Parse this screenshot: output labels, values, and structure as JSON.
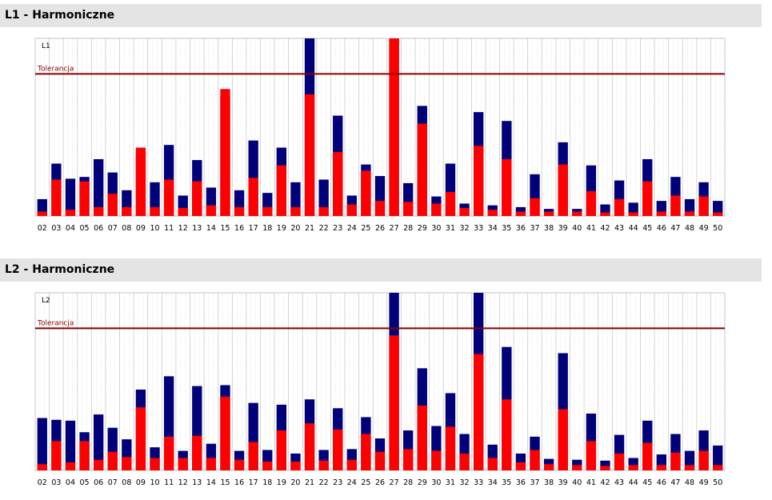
{
  "colors": {
    "blue": "#00007a",
    "red": "#ff0000",
    "tolerance": "#8b0000",
    "frame": "#b8c4d4"
  },
  "sections": [
    {
      "title": "L1 - Harmoniczne"
    },
    {
      "title": "L2 - Harmoniczne"
    }
  ],
  "chart_data": [
    {
      "type": "bar",
      "title": "L1 - Harmoniczne",
      "corner_label": "L1",
      "tolerance_label": "Tolerancja",
      "tolerance": 80,
      "ylim": [
        0,
        100
      ],
      "categories": [
        "02",
        "03",
        "04",
        "05",
        "06",
        "07",
        "08",
        "09",
        "10",
        "11",
        "12",
        "13",
        "14",
        "15",
        "16",
        "17",
        "18",
        "19",
        "20",
        "21",
        "22",
        "23",
        "24",
        "25",
        "26",
        "27",
        "28",
        "29",
        "30",
        "31",
        "32",
        "33",
        "34",
        "35",
        "36",
        "37",
        "38",
        "39",
        "40",
        "41",
        "42",
        "43",
        "44",
        "45",
        "46",
        "47",
        "48",
        "49",
        "50"
      ],
      "series": [
        {
          "values": [
            9.5,
            29.5,
            21,
            22,
            32,
            24.5,
            14.5,
            35.5,
            19,
            40,
            11.5,
            31.5,
            16,
            67,
            14.5,
            42.5,
            13,
            38.5,
            19,
            100,
            20.5,
            56.5,
            11.5,
            29,
            22.5,
            100,
            18.5,
            62,
            11,
            29.5,
            7,
            58.5,
            6,
            53.5,
            5,
            23.5,
            4,
            41.5,
            4,
            28.5,
            6.5,
            20,
            7.5,
            32,
            8.5,
            22,
            9.5,
            19,
            8.5
          ]
        },
        {
          "values": [
            2.5,
            20.5,
            3.5,
            19.5,
            5,
            12.5,
            5,
            38.5,
            5,
            20.5,
            4.5,
            19.5,
            6,
            71.5,
            5,
            21.5,
            5,
            28.5,
            5,
            68.5,
            5,
            36,
            6.5,
            25.5,
            8.5,
            100,
            8,
            52,
            7,
            13.5,
            4.5,
            39.5,
            3.5,
            32,
            2.5,
            10,
            2.5,
            29,
            2.5,
            14,
            2,
            9.5,
            2,
            19.5,
            2.5,
            11.5,
            2.5,
            11,
            2
          ]
        }
      ]
    },
    {
      "type": "bar",
      "title": "L2 - Harmoniczne",
      "corner_label": "L2",
      "tolerance_label": "Tolerancja",
      "tolerance": 80,
      "ylim": [
        0,
        100
      ],
      "categories": [
        "02",
        "03",
        "04",
        "05",
        "06",
        "07",
        "08",
        "09",
        "10",
        "11",
        "12",
        "13",
        "14",
        "15",
        "16",
        "17",
        "18",
        "19",
        "20",
        "21",
        "22",
        "23",
        "24",
        "25",
        "26",
        "27",
        "28",
        "29",
        "30",
        "31",
        "32",
        "33",
        "34",
        "35",
        "36",
        "37",
        "38",
        "39",
        "40",
        "41",
        "42",
        "43",
        "44",
        "45",
        "46",
        "47",
        "48",
        "49",
        "50"
      ],
      "series": [
        {
          "values": [
            29.5,
            28.5,
            28,
            21.5,
            31.5,
            24,
            17.5,
            45.5,
            13,
            53,
            11,
            47.5,
            15,
            48,
            11,
            38,
            11.5,
            37,
            9.5,
            40,
            11.5,
            35,
            12,
            30,
            18,
            100,
            22.5,
            57.5,
            25,
            43.5,
            20.5,
            100,
            14.5,
            69.5,
            9.5,
            19,
            6.5,
            66,
            6,
            32,
            5.5,
            20,
            7,
            28,
            9,
            20.5,
            11,
            22.5,
            14
          ]
        },
        {
          "values": [
            3.5,
            16.5,
            4.5,
            16.5,
            6,
            10.5,
            7.5,
            35.5,
            7,
            19,
            7,
            19.5,
            7,
            41.5,
            6,
            16,
            5,
            22.5,
            5,
            26.5,
            5.5,
            23,
            6,
            20.5,
            10.5,
            76,
            12,
            36.5,
            11,
            24.5,
            9.5,
            65.5,
            7,
            40,
            4.5,
            11.5,
            3.5,
            34.5,
            3,
            16.5,
            2.5,
            9.5,
            3,
            15.5,
            3,
            10,
            3,
            11,
            3
          ]
        }
      ]
    }
  ]
}
